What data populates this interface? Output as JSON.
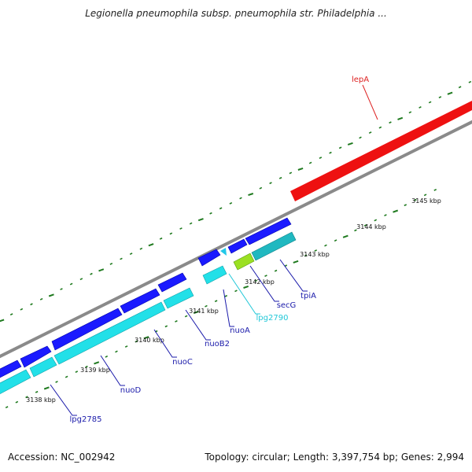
{
  "header": {
    "title": "Legionella pneumophila subsp. pneumophila str. Philadelphia ..."
  },
  "footer": {
    "accession": "Accession: NC_002942",
    "stats": "Topology: circular; Length: 3,397,754 bp; Genes: 2,994"
  },
  "colors": {
    "backbone": "#8a8a8a",
    "tick_green": "#1f7a1f",
    "forward_gene": "#1a1aff",
    "reverse_gene": "#22e0e8",
    "reverse_gene_alt": "#20b8c0",
    "rna_gene": "#ee1111",
    "highlight_gene": "#9be022",
    "label_blue": "#1a1aaa",
    "label_red": "#dd2222",
    "label_cyan": "#22c8d8"
  },
  "kbp_ticks": [
    {
      "label": "3138 kbp",
      "kbp": 3138
    },
    {
      "label": "3139 kbp",
      "kbp": 3139
    },
    {
      "label": "3140 kbp",
      "kbp": 3140
    },
    {
      "label": "3141 kbp",
      "kbp": 3141
    },
    {
      "label": "3142 kbp",
      "kbp": 3142
    },
    {
      "label": "3143 kbp",
      "kbp": 3143
    },
    {
      "label": "3144 kbp",
      "kbp": 3144
    },
    {
      "label": "3145 kbp",
      "kbp": 3145
    }
  ],
  "gene_labels": [
    {
      "name": "lepA",
      "color": "label_red"
    },
    {
      "name": "tpiA",
      "color": "label_blue"
    },
    {
      "name": "secG",
      "color": "label_blue"
    },
    {
      "name": "lpg2790",
      "color": "label_cyan"
    },
    {
      "name": "nuoA",
      "color": "label_blue"
    },
    {
      "name": "nuoB2",
      "color": "label_blue"
    },
    {
      "name": "nuoC",
      "color": "label_blue"
    },
    {
      "name": "nuoD",
      "color": "label_blue"
    },
    {
      "name": "lpg2785",
      "color": "label_blue"
    }
  ]
}
